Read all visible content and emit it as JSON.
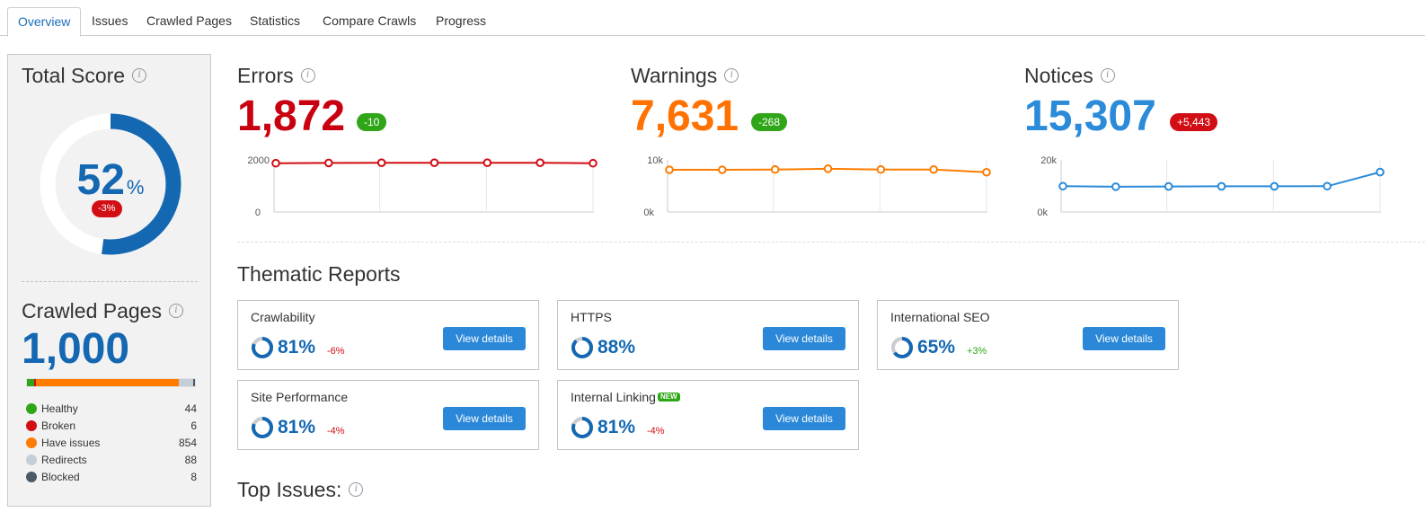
{
  "tabs": [
    {
      "label": "Overview",
      "active": true
    },
    {
      "label": "Issues"
    },
    {
      "label": "Crawled Pages"
    },
    {
      "label": "Statistics"
    },
    {
      "label": "Compare Crawls"
    },
    {
      "label": "Progress"
    }
  ],
  "total_score": {
    "title": "Total Score",
    "value": "52",
    "unit": "%",
    "fraction": 0.52,
    "change": "-3%",
    "ring_color": "#1468b2"
  },
  "crawled_pages": {
    "title": "Crawled Pages",
    "value": "1,000",
    "items": [
      {
        "label": "Healthy",
        "value": "44",
        "count": 44,
        "color": "#2fa617"
      },
      {
        "label": "Broken",
        "value": "6",
        "count": 6,
        "color": "#d10e14"
      },
      {
        "label": "Have issues",
        "value": "854",
        "count": 854,
        "color": "#ff7a00"
      },
      {
        "label": "Redirects",
        "value": "88",
        "count": 88,
        "color": "#c4ced6"
      },
      {
        "label": "Blocked",
        "value": "8",
        "count": 8,
        "color": "#4a5a66"
      }
    ]
  },
  "metrics": {
    "errors": {
      "title": "Errors",
      "value": "1,872",
      "change": "-10",
      "color": "#c8000f",
      "badge": "green"
    },
    "warnings": {
      "title": "Warnings",
      "value": "7,631",
      "change": "-268",
      "color": "#ff7100",
      "badge": "green"
    },
    "notices": {
      "title": "Notices",
      "value": "15,307",
      "change": "+5,443",
      "color": "#2b8bd9",
      "badge": "red"
    }
  },
  "chart_data": [
    {
      "type": "line",
      "title": "Errors",
      "ylim": [
        0,
        2000
      ],
      "yticks": [
        "0",
        "2000"
      ],
      "series": [
        {
          "values": [
            1872,
            1882,
            1890,
            1890,
            1890,
            1890,
            1872
          ]
        }
      ],
      "color": "#d10e14"
    },
    {
      "type": "line",
      "title": "Warnings",
      "ylim": [
        0,
        10000
      ],
      "yticks": [
        "0k",
        "10k"
      ],
      "series": [
        {
          "values": [
            8100,
            8100,
            8150,
            8300,
            8150,
            8150,
            7631
          ]
        }
      ],
      "color": "#ff7a00"
    },
    {
      "type": "line",
      "title": "Notices",
      "ylim": [
        0,
        20000
      ],
      "yticks": [
        "0k",
        "20k"
      ],
      "series": [
        {
          "values": [
            9900,
            9700,
            9800,
            9850,
            9850,
            9900,
            15307
          ]
        }
      ],
      "color": "#2b8bd9"
    }
  ],
  "thematic": {
    "title": "Thematic Reports",
    "button_label": "View details",
    "cards": [
      {
        "title": "Crawlability",
        "pct": "81%",
        "fraction": 0.81,
        "delta": "-6%",
        "delta_sign": "neg"
      },
      {
        "title": "HTTPS",
        "pct": "88%",
        "fraction": 0.88,
        "delta": "",
        "delta_sign": ""
      },
      {
        "title": "International SEO",
        "pct": "65%",
        "fraction": 0.65,
        "delta": "+3%",
        "delta_sign": "pos"
      },
      {
        "title": "Site Performance",
        "pct": "81%",
        "fraction": 0.81,
        "delta": "-4%",
        "delta_sign": "neg"
      },
      {
        "title": "Internal Linking",
        "pct": "81%",
        "fraction": 0.81,
        "delta": "-4%",
        "delta_sign": "neg",
        "badge": "NEW"
      }
    ]
  },
  "top_issues": {
    "title": "Top Issues:"
  },
  "info_glyph": "i"
}
